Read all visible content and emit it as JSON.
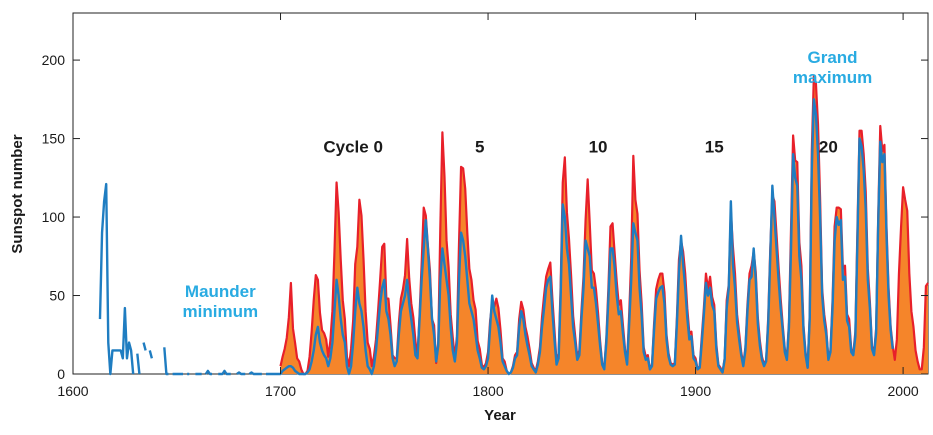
{
  "chart_data": {
    "type": "area-line",
    "xlabel": "Year",
    "ylabel": "Sunspot number",
    "xlim": [
      1600,
      2012
    ],
    "ylim": [
      0,
      230
    ],
    "xticks": [
      1600,
      1700,
      1800,
      1900,
      2000
    ],
    "yticks": [
      0,
      50,
      100,
      150,
      200
    ],
    "annotations": [
      {
        "lines": [
          "Cycle 0"
        ],
        "x": 1735,
        "y": 145,
        "color": "#1a1a1a"
      },
      {
        "lines": [
          "5"
        ],
        "x": 1796,
        "y": 145,
        "color": "#1a1a1a"
      },
      {
        "lines": [
          "10"
        ],
        "x": 1853,
        "y": 145,
        "color": "#1a1a1a"
      },
      {
        "lines": [
          "15"
        ],
        "x": 1909,
        "y": 145,
        "color": "#1a1a1a"
      },
      {
        "lines": [
          "20"
        ],
        "x": 1964,
        "y": 145,
        "color": "#1a1a1a"
      },
      {
        "lines": [
          "Maunder",
          "minimum"
        ],
        "x": 1671,
        "y": 53,
        "color": "#29abe2"
      },
      {
        "lines": [
          "Grand",
          "maximum"
        ],
        "x": 1966,
        "y": 202,
        "color": "#29abe2"
      }
    ],
    "x": [
      1610,
      1611,
      1612,
      1613,
      1614,
      1615,
      1616,
      1617,
      1618,
      1619,
      1620,
      1621,
      1622,
      1623,
      1624,
      1625,
      1626,
      1627,
      1628,
      1629,
      1630,
      1631,
      1632,
      1633,
      1634,
      1635,
      1636,
      1637,
      1638,
      1639,
      1640,
      1641,
      1642,
      1643,
      1644,
      1645,
      1646,
      1647,
      1648,
      1649,
      1650,
      1651,
      1652,
      1653,
      1654,
      1655,
      1656,
      1657,
      1658,
      1659,
      1660,
      1661,
      1662,
      1663,
      1664,
      1665,
      1666,
      1667,
      1668,
      1669,
      1670,
      1671,
      1672,
      1673,
      1674,
      1675,
      1676,
      1677,
      1678,
      1679,
      1680,
      1681,
      1682,
      1683,
      1684,
      1685,
      1686,
      1687,
      1688,
      1689,
      1690,
      1691,
      1692,
      1693,
      1694,
      1695,
      1696,
      1697,
      1698,
      1699,
      1700,
      1701,
      1702,
      1703,
      1704,
      1705,
      1706,
      1707,
      1708,
      1709,
      1710,
      1711,
      1712,
      1713,
      1714,
      1715,
      1716,
      1717,
      1718,
      1719,
      1720,
      1721,
      1722,
      1723,
      1724,
      1725,
      1726,
      1727,
      1728,
      1729,
      1730,
      1731,
      1732,
      1733,
      1734,
      1735,
      1736,
      1737,
      1738,
      1739,
      1740,
      1741,
      1742,
      1743,
      1744,
      1745,
      1746,
      1747,
      1748,
      1749,
      1750,
      1751,
      1752,
      1753,
      1754,
      1755,
      1756,
      1757,
      1758,
      1759,
      1760,
      1761,
      1762,
      1763,
      1764,
      1765,
      1766,
      1767,
      1768,
      1769,
      1770,
      1771,
      1772,
      1773,
      1774,
      1775,
      1776,
      1777,
      1778,
      1779,
      1780,
      1781,
      1782,
      1783,
      1784,
      1785,
      1786,
      1787,
      1788,
      1789,
      1790,
      1791,
      1792,
      1793,
      1794,
      1795,
      1796,
      1797,
      1798,
      1799,
      1800,
      1801,
      1802,
      1803,
      1804,
      1805,
      1806,
      1807,
      1808,
      1809,
      1810,
      1811,
      1812,
      1813,
      1814,
      1815,
      1816,
      1817,
      1818,
      1819,
      1820,
      1821,
      1822,
      1823,
      1824,
      1825,
      1826,
      1827,
      1828,
      1829,
      1830,
      1831,
      1832,
      1833,
      1834,
      1835,
      1836,
      1837,
      1838,
      1839,
      1840,
      1841,
      1842,
      1843,
      1844,
      1845,
      1846,
      1847,
      1848,
      1849,
      1850,
      1851,
      1852,
      1853,
      1854,
      1855,
      1856,
      1857,
      1858,
      1859,
      1860,
      1861,
      1862,
      1863,
      1864,
      1865,
      1866,
      1867,
      1868,
      1869,
      1870,
      1871,
      1872,
      1873,
      1874,
      1875,
      1876,
      1877,
      1878,
      1879,
      1880,
      1881,
      1882,
      1883,
      1884,
      1885,
      1886,
      1887,
      1888,
      1889,
      1890,
      1891,
      1892,
      1893,
      1894,
      1895,
      1896,
      1897,
      1898,
      1899,
      1900,
      1901,
      1902,
      1903,
      1904,
      1905,
      1906,
      1907,
      1908,
      1909,
      1910,
      1911,
      1912,
      1913,
      1914,
      1915,
      1916,
      1917,
      1918,
      1919,
      1920,
      1921,
      1922,
      1923,
      1924,
      1925,
      1926,
      1927,
      1928,
      1929,
      1930,
      1931,
      1932,
      1933,
      1934,
      1935,
      1936,
      1937,
      1938,
      1939,
      1940,
      1941,
      1942,
      1943,
      1944,
      1945,
      1946,
      1947,
      1948,
      1949,
      1950,
      1951,
      1952,
      1953,
      1954,
      1955,
      1956,
      1957,
      1958,
      1959,
      1960,
      1961,
      1962,
      1963,
      1964,
      1965,
      1966,
      1967,
      1968,
      1969,
      1970,
      1971,
      1972,
      1973,
      1974,
      1975,
      1976,
      1977,
      1978,
      1979,
      1980,
      1981,
      1982,
      1983,
      1984,
      1985,
      1986,
      1987,
      1988,
      1989,
      1990,
      1991,
      1992,
      1993,
      1994,
      1995,
      1996,
      1997,
      1998,
      1999,
      2000,
      2001,
      2002,
      2003,
      2004,
      2005,
      2006,
      2007,
      2008,
      2009,
      2010,
      2011,
      2012
    ],
    "series": [
      {
        "style": "area",
        "color": "#e8202a",
        "fill": "#f5852a",
        "values": [
          null,
          null,
          null,
          null,
          null,
          null,
          null,
          null,
          null,
          null,
          null,
          null,
          null,
          null,
          null,
          null,
          null,
          null,
          null,
          null,
          null,
          null,
          null,
          null,
          null,
          null,
          null,
          null,
          null,
          null,
          null,
          null,
          null,
          null,
          null,
          null,
          null,
          null,
          null,
          null,
          null,
          null,
          null,
          null,
          null,
          null,
          null,
          null,
          null,
          null,
          null,
          null,
          null,
          null,
          null,
          null,
          null,
          null,
          null,
          null,
          null,
          null,
          null,
          null,
          null,
          null,
          null,
          null,
          null,
          null,
          null,
          null,
          null,
          null,
          null,
          null,
          null,
          null,
          null,
          null,
          null,
          null,
          null,
          null,
          null,
          null,
          null,
          null,
          null,
          null,
          5,
          11,
          16,
          23,
          36,
          58,
          29,
          20,
          10,
          8,
          3,
          0,
          0,
          2,
          11,
          27,
          47,
          63,
          60,
          39,
          28,
          26,
          22,
          11,
          21,
          40,
          78,
          122,
          103,
          73,
          47,
          35,
          11,
          5,
          16,
          34,
          70,
          81,
          111,
          101,
          73,
          40,
          20,
          16,
          5,
          11,
          22,
          40,
          60,
          81,
          83,
          48,
          48,
          31,
          12,
          10,
          10,
          32,
          48,
          54,
          63,
          86,
          61,
          45,
          36,
          21,
          11,
          38,
          70,
          106,
          101,
          82,
          66,
          35,
          31,
          7,
          20,
          93,
          154,
          126,
          85,
          68,
          38,
          23,
          10,
          24,
          83,
          132,
          131,
          118,
          90,
          67,
          60,
          47,
          41,
          21,
          16,
          6,
          4,
          7,
          14,
          34,
          45,
          43,
          48,
          42,
          28,
          10,
          8,
          2,
          0,
          1,
          5,
          12,
          14,
          35,
          46,
          41,
          30,
          24,
          16,
          7,
          4,
          2,
          8,
          17,
          36,
          50,
          62,
          67,
          71,
          48,
          28,
          8,
          13,
          57,
          122,
          138,
          103,
          86,
          63,
          37,
          24,
          11,
          15,
          40,
          62,
          98,
          124,
          96,
          66,
          64,
          54,
          39,
          21,
          7,
          4,
          23,
          55,
          94,
          96,
          77,
          59,
          44,
          47,
          31,
          16,
          7,
          38,
          74,
          139,
          111,
          102,
          66,
          45,
          17,
          11,
          12,
          3,
          6,
          32,
          54,
          60,
          64,
          64,
          52,
          25,
          13,
          7,
          6,
          7,
          36,
          73,
          85,
          78,
          64,
          42,
          26,
          27,
          12,
          10,
          3,
          5,
          24,
          42,
          64,
          54,
          62,
          49,
          44,
          19,
          6,
          4,
          1,
          10,
          47,
          57,
          104,
          81,
          64,
          38,
          26,
          14,
          6,
          17,
          44,
          64,
          69,
          78,
          65,
          36,
          21,
          11,
          6,
          9,
          36,
          80,
          114,
          110,
          89,
          68,
          48,
          31,
          16,
          10,
          33,
          93,
          152,
          136,
          135,
          84,
          69,
          31,
          14,
          4,
          38,
          142,
          190,
          185,
          159,
          112,
          54,
          38,
          28,
          10,
          15,
          47,
          94,
          106,
          106,
          105,
          67,
          69,
          38,
          35,
          16,
          13,
          27,
          93,
          155,
          155,
          140,
          116,
          67,
          46,
          18,
          13,
          29,
          100,
          158,
          142,
          146,
          94,
          55,
          30,
          18,
          9,
          22,
          64,
          93,
          119,
          111,
          104,
          64,
          40,
          30,
          15,
          8,
          3,
          3,
          17,
          56,
          58
        ]
      },
      {
        "style": "line",
        "color": "#1f7dc1",
        "values": [
          null,
          null,
          null,
          35,
          90,
          110,
          121,
          20,
          0,
          15,
          15,
          15,
          15,
          15,
          10,
          42,
          10,
          20,
          15,
          0,
          null,
          13,
          0,
          null,
          20,
          15,
          null,
          15,
          10,
          null,
          null,
          null,
          5,
          null,
          17,
          0,
          0,
          null,
          0,
          0,
          0,
          0,
          0,
          0,
          null,
          0,
          0,
          null,
          null,
          0,
          0,
          0,
          0,
          null,
          0,
          2,
          0,
          0,
          null,
          null,
          0,
          0,
          0,
          2,
          0,
          0,
          0,
          null,
          null,
          0,
          1,
          0,
          0,
          0,
          null,
          0,
          1,
          0,
          0,
          0,
          0,
          0,
          null,
          0,
          0,
          0,
          0,
          0,
          0,
          0,
          0,
          2,
          3,
          4,
          5,
          5,
          4,
          2,
          1,
          0,
          0,
          0,
          0,
          1,
          3,
          8,
          15,
          25,
          30,
          20,
          15,
          12,
          10,
          5,
          10,
          20,
          40,
          60,
          50,
          35,
          25,
          20,
          5,
          0,
          5,
          20,
          40,
          55,
          45,
          40,
          30,
          15,
          5,
          3,
          0,
          5,
          15,
          30,
          45,
          55,
          60,
          40,
          35,
          25,
          10,
          5,
          8,
          25,
          40,
          45,
          50,
          60,
          45,
          35,
          25,
          12,
          10,
          35,
          60,
          80,
          98,
          80,
          60,
          35,
          25,
          8,
          18,
          60,
          80,
          70,
          60,
          50,
          30,
          15,
          8,
          20,
          60,
          90,
          85,
          75,
          60,
          45,
          40,
          35,
          25,
          15,
          10,
          4,
          3,
          5,
          10,
          30,
          50,
          40,
          35,
          30,
          20,
          8,
          5,
          2,
          0,
          1,
          4,
          10,
          12,
          30,
          40,
          35,
          25,
          18,
          12,
          5,
          3,
          1,
          6,
          14,
          30,
          42,
          55,
          60,
          62,
          40,
          22,
          6,
          10,
          50,
          108,
          100,
          80,
          70,
          50,
          30,
          20,
          9,
          12,
          35,
          55,
          85,
          80,
          75,
          55,
          55,
          45,
          32,
          18,
          6,
          3,
          20,
          48,
          80,
          80,
          68,
          50,
          38,
          40,
          26,
          14,
          6,
          32,
          60,
          96,
          90,
          85,
          55,
          38,
          14,
          9,
          10,
          3,
          5,
          28,
          48,
          52,
          55,
          56,
          45,
          22,
          11,
          6,
          5,
          6,
          32,
          65,
          88,
          70,
          55,
          36,
          22,
          24,
          10,
          8,
          3,
          4,
          20,
          38,
          58,
          50,
          55,
          44,
          40,
          16,
          5,
          3,
          1,
          9,
          42,
          55,
          110,
          70,
          55,
          33,
          22,
          12,
          5,
          15,
          40,
          60,
          62,
          80,
          60,
          32,
          18,
          9,
          5,
          8,
          32,
          75,
          120,
          100,
          80,
          60,
          42,
          28,
          14,
          9,
          30,
          80,
          140,
          125,
          120,
          75,
          60,
          28,
          12,
          4,
          35,
          130,
          175,
          165,
          140,
          100,
          50,
          34,
          25,
          9,
          14,
          42,
          85,
          100,
          95,
          98,
          60,
          62,
          34,
          30,
          14,
          12,
          24,
          85,
          150,
          145,
          130,
          105,
          60,
          42,
          16,
          12,
          26,
          95,
          148,
          135,
          140,
          88,
          50,
          28,
          16,
          null,
          null,
          null,
          null,
          null,
          null,
          null,
          null,
          null,
          null,
          null,
          null,
          null,
          null,
          null,
          null,
          null
        ]
      }
    ]
  }
}
